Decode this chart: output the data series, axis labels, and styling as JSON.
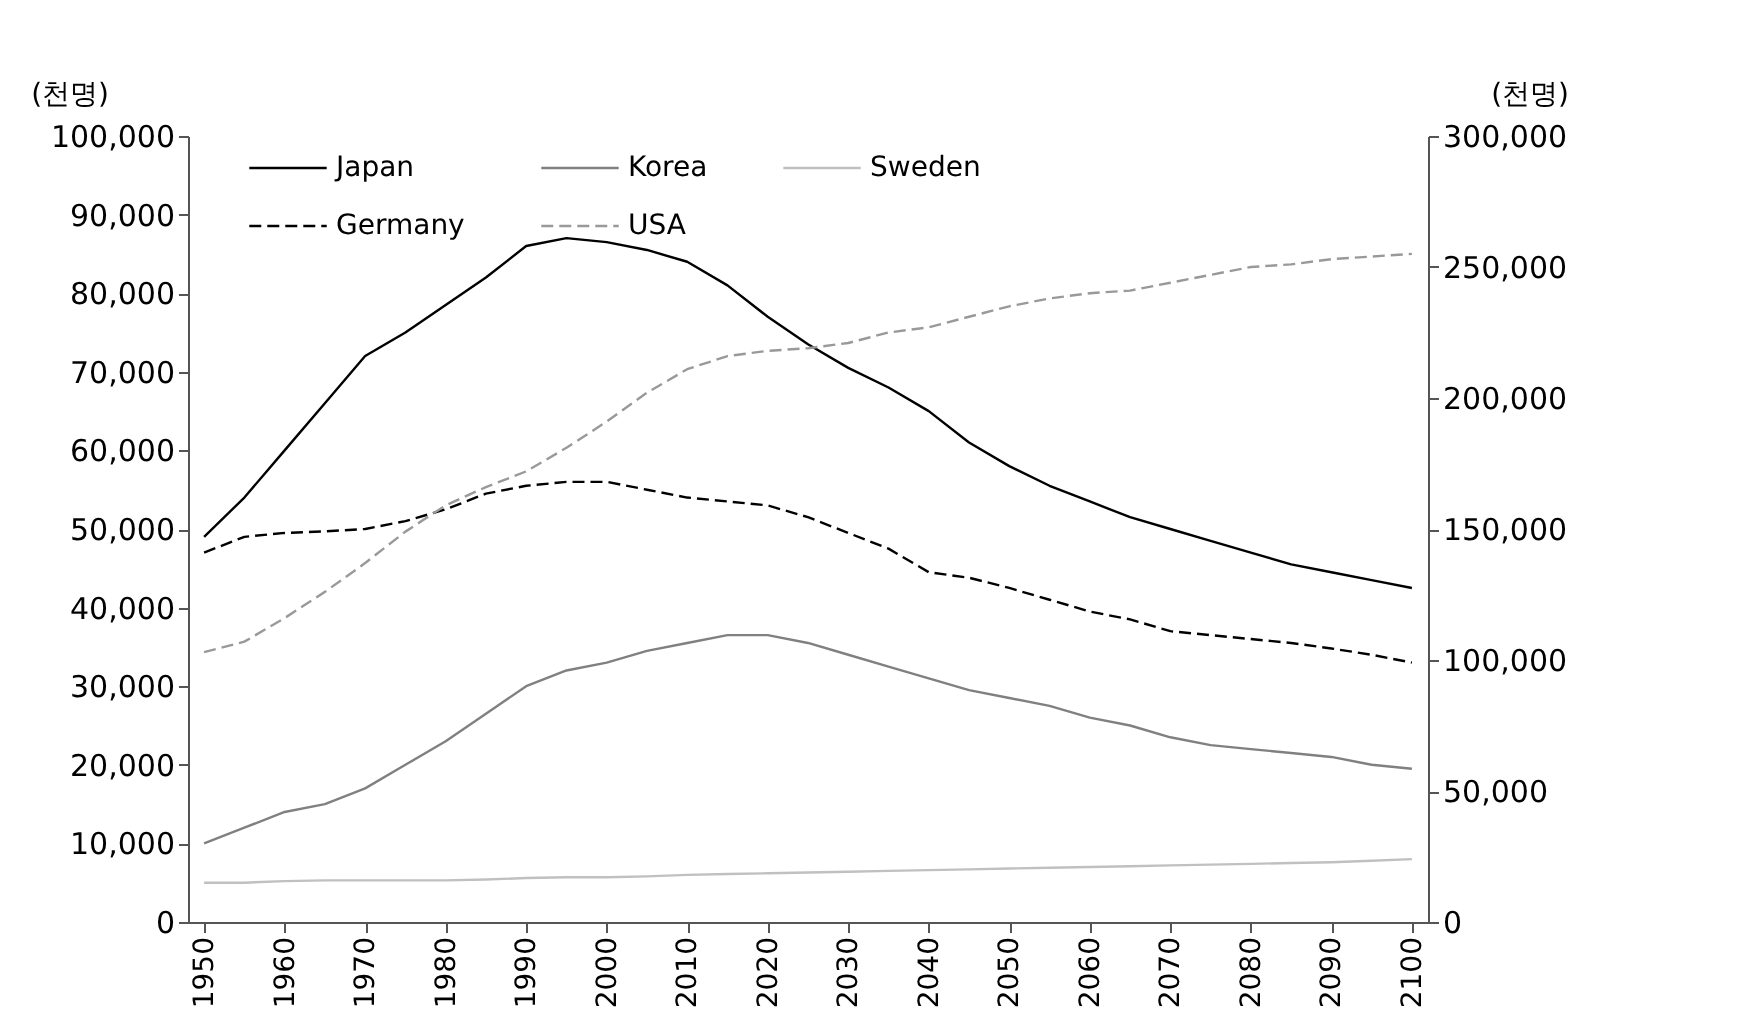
{
  "chart_data": {
    "type": "line",
    "ylabel": "(천명)",
    "y2label": "(천명)",
    "x": [
      1950,
      1955,
      1960,
      1965,
      1970,
      1975,
      1980,
      1985,
      1990,
      1995,
      2000,
      2005,
      2010,
      2015,
      2020,
      2025,
      2030,
      2035,
      2040,
      2045,
      2050,
      2055,
      2060,
      2065,
      2070,
      2075,
      2080,
      2085,
      2090,
      2095,
      2100
    ],
    "xlim": [
      1948,
      2102
    ],
    "xticks": [
      1950,
      1960,
      1970,
      1980,
      1990,
      2000,
      2010,
      2020,
      2030,
      2040,
      2050,
      2060,
      2070,
      2080,
      2090,
      2100
    ],
    "ylim": [
      0,
      100000
    ],
    "yticks": [
      0,
      {
        "value": 10000,
        "label": "10,000"
      },
      {
        "value": 20000,
        "label": "20,000"
      },
      {
        "value": 30000,
        "label": "30,000"
      },
      {
        "value": 40000,
        "label": "40,000"
      },
      {
        "value": 50000,
        "label": "50,000"
      },
      {
        "value": 60000,
        "label": "60,000"
      },
      {
        "value": 70000,
        "label": "70,000"
      },
      {
        "value": 80000,
        "label": "80,000"
      },
      {
        "value": 90000,
        "label": "90,000"
      },
      {
        "value": 100000,
        "label": "100,000"
      }
    ],
    "y2lim": [
      0,
      300000
    ],
    "y2ticks": [
      0,
      {
        "value": 50000,
        "label": "50,000"
      },
      {
        "value": 100000,
        "label": "100,000"
      },
      {
        "value": 150000,
        "label": "150,000"
      },
      {
        "value": 200000,
        "label": "200,000"
      },
      {
        "value": 250000,
        "label": "250,000"
      },
      {
        "value": 300000,
        "label": "300,000"
      }
    ],
    "grid": false,
    "legend": "top",
    "marker": "none",
    "series": [
      {
        "name": "Japan",
        "color": "#000000",
        "line_style": "solid",
        "values": [
          49000,
          54000,
          60000,
          66000,
          72000,
          75000,
          78500,
          82000,
          86000,
          87000,
          86500,
          85500,
          84000,
          81000,
          77000,
          73500,
          70500,
          68000,
          65000,
          61000,
          58000,
          55500,
          53500,
          51500,
          50000,
          48500,
          47000,
          45500,
          44500,
          43500,
          42500
        ]
      },
      {
        "name": "Korea",
        "color": "#808080",
        "line_style": "solid",
        "values": [
          10000,
          12000,
          14000,
          15000,
          17000,
          20000,
          23000,
          26500,
          30000,
          32000,
          33000,
          34500,
          35500,
          36500,
          36500,
          35500,
          34000,
          32500,
          31000,
          29500,
          28500,
          27500,
          26000,
          25000,
          23500,
          22500,
          22000,
          21500,
          21000,
          20000,
          19500
        ]
      },
      {
        "name": "Sweden",
        "color": "#c0c0c0",
        "line_style": "solid",
        "values": [
          5000,
          5000,
          5200,
          5300,
          5300,
          5300,
          5300,
          5400,
          5600,
          5700,
          5700,
          5800,
          6000,
          6100,
          6200,
          6300,
          6400,
          6500,
          6600,
          6700,
          6800,
          6900,
          7000,
          7100,
          7200,
          7300,
          7400,
          7500,
          7600,
          7800,
          8000
        ]
      },
      {
        "name": "Germany",
        "color": "#000000",
        "line_style": "dashed",
        "values": [
          47000,
          49000,
          49500,
          49700,
          50000,
          51000,
          52500,
          54500,
          55500,
          56000,
          56000,
          55000,
          54000,
          53500,
          53000,
          51500,
          49500,
          47500,
          44500,
          43800,
          42500,
          41000,
          39500,
          38500,
          37000,
          36500,
          36000,
          35500,
          34800,
          34000,
          33000
        ]
      },
      {
        "name": "USA",
        "color": "#999999",
        "line_style": "dashed",
        "axis": "y2",
        "values": [
          103000,
          107000,
          116000,
          126000,
          137000,
          149000,
          159000,
          166000,
          172000,
          181000,
          191000,
          202000,
          211000,
          216000,
          218000,
          219000,
          221000,
          225000,
          227000,
          231000,
          235000,
          238000,
          240000,
          241000,
          244000,
          247000,
          250000,
          251000,
          253000,
          254000,
          255000
        ]
      }
    ]
  }
}
